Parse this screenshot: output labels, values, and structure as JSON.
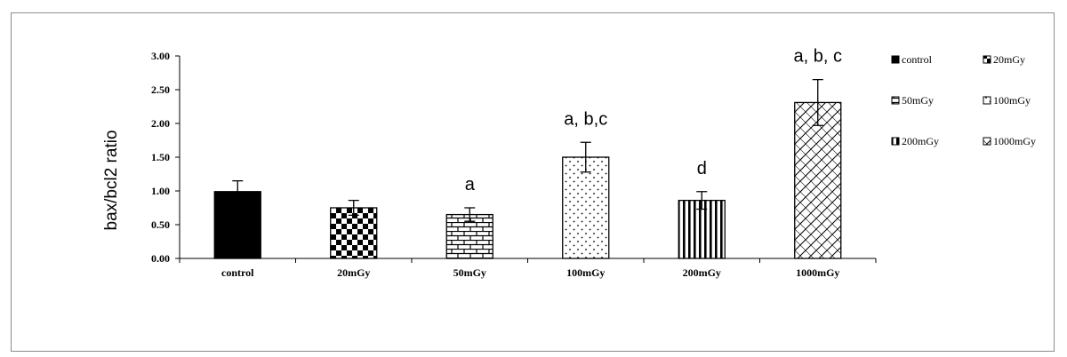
{
  "chart_data": {
    "type": "bar",
    "title": "",
    "xlabel": "",
    "ylabel": "bax/bcl2 ratio",
    "ylim": [
      0,
      3
    ],
    "yticks": [
      "0.00",
      "0.50",
      "1.00",
      "1.50",
      "2.00",
      "2.50",
      "3.00"
    ],
    "categories": [
      "control",
      "20mGy",
      "50mGy",
      "100mGy",
      "200mGy",
      "1000mGy"
    ],
    "values": [
      0.99,
      0.75,
      0.65,
      1.5,
      0.86,
      2.31
    ],
    "errors": [
      0.16,
      0.11,
      0.1,
      0.22,
      0.13,
      0.34
    ],
    "annotations": [
      "",
      "",
      "a",
      "a, b,c",
      "d",
      "a, b, c"
    ],
    "patterns": [
      "solid",
      "checker",
      "brick",
      "dots",
      "vstripes",
      "diagonal-cross"
    ],
    "legend": {
      "placement": "right",
      "entries": [
        "control",
        "20mGy",
        "50mGy",
        "100mGy",
        "200mGy",
        "1000mGy"
      ]
    },
    "grid": false
  }
}
